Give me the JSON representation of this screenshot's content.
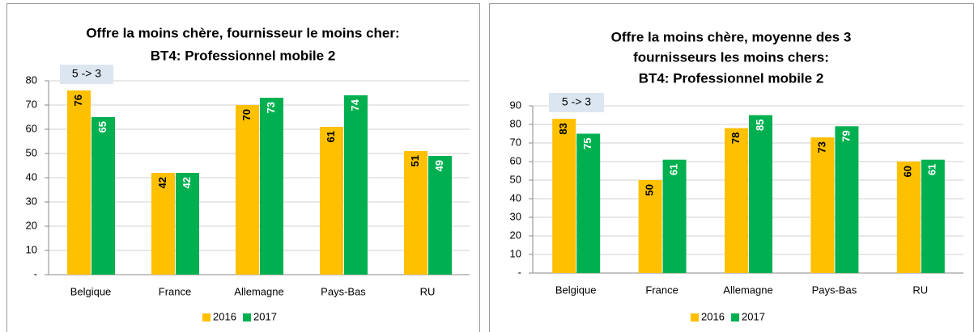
{
  "chart_data": [
    {
      "type": "bar",
      "title": [
        "Offre la moins chère, fournisseur le moins cher:",
        "BT4: Professionnel mobile 2"
      ],
      "annotations": [
        "5 -> 3"
      ],
      "categories": [
        "Belgique",
        "France",
        "Allemagne",
        "Pays-Bas",
        "RU"
      ],
      "series": [
        {
          "name": "2016",
          "color": "#FFC000",
          "values": [
            76,
            42,
            70,
            61,
            51
          ]
        },
        {
          "name": "2017",
          "color": "#00B050",
          "values": [
            65,
            42,
            73,
            74,
            49
          ]
        }
      ],
      "ylim": [
        0,
        80
      ],
      "yticks": [
        {
          "value": 0,
          "label": "-"
        },
        10,
        20,
        30,
        40,
        50,
        60,
        70,
        80
      ],
      "grid": true,
      "legend": "bottom"
    },
    {
      "type": "bar",
      "title": [
        "Offre la moins chère, moyenne des 3",
        "fournisseurs les moins chers:",
        "BT4: Professionnel mobile 2"
      ],
      "annotations": [
        "5 -> 3"
      ],
      "categories": [
        "Belgique",
        "France",
        "Allemagne",
        "Pays-Bas",
        "RU"
      ],
      "series": [
        {
          "name": "2016",
          "color": "#FFC000",
          "values": [
            83,
            50,
            78,
            73,
            60
          ]
        },
        {
          "name": "2017",
          "color": "#00B050",
          "values": [
            75,
            61,
            85,
            79,
            61
          ]
        }
      ],
      "ylim": [
        0,
        90
      ],
      "yticks": [
        {
          "value": 0,
          "label": "-"
        },
        10,
        20,
        30,
        40,
        50,
        60,
        70,
        80,
        90
      ],
      "grid": true,
      "legend": "bottom"
    }
  ]
}
